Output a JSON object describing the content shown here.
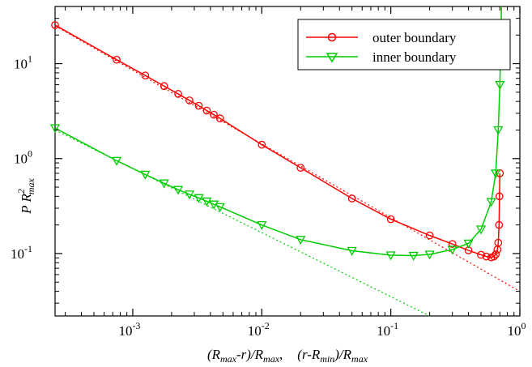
{
  "chart_data": {
    "type": "line",
    "title": "",
    "xscale": "log",
    "yscale": "log",
    "xlim": [
      0.00025,
      1.0
    ],
    "ylim": [
      0.022,
      40
    ],
    "grid": false,
    "legend": {
      "position": "top-right"
    },
    "xlabel": {
      "part1": "(R",
      "part1_sub": "max",
      "part2": "-r)/R",
      "part2_sub": "max",
      "sep": ",",
      "part3": "(r-R",
      "part3_sub": "min",
      "part4": ")/R",
      "part4_sub": "max"
    },
    "ylabel": {
      "main": "P R",
      "sup": "2",
      "sub": "max"
    },
    "x_ticks": [
      {
        "base": "10",
        "exp": "-3",
        "value": 0.001
      },
      {
        "base": "10",
        "exp": "-2",
        "value": 0.01
      },
      {
        "base": "10",
        "exp": "-1",
        "value": 0.1
      },
      {
        "base": "10",
        "exp": "0",
        "value": 1.0
      }
    ],
    "y_ticks": [
      {
        "base": "10",
        "exp": "-1",
        "value": 0.1
      },
      {
        "base": "10",
        "exp": "0",
        "value": 1.0
      },
      {
        "base": "10",
        "exp": "1",
        "value": 10.0
      }
    ],
    "series": [
      {
        "name": "outer boundary",
        "color": "#ff0000",
        "marker": "circle",
        "x": [
          0.00025,
          0.00075,
          0.00125,
          0.00175,
          0.00225,
          0.00275,
          0.00325,
          0.00375,
          0.00425,
          0.00475,
          0.01,
          0.02,
          0.05,
          0.1,
          0.2,
          0.3,
          0.4,
          0.5,
          0.55,
          0.6,
          0.63,
          0.65,
          0.67,
          0.68,
          0.69,
          0.695,
          0.7
        ],
        "y": [
          25.5,
          11.0,
          7.5,
          5.8,
          4.8,
          4.1,
          3.6,
          3.2,
          2.9,
          2.65,
          1.4,
          0.8,
          0.38,
          0.23,
          0.155,
          0.126,
          0.108,
          0.097,
          0.093,
          0.091,
          0.093,
          0.098,
          0.11,
          0.13,
          0.2,
          0.4,
          0.7
        ]
      },
      {
        "name": "inner boundary",
        "color": "#00cc00",
        "marker": "triangle-down",
        "x": [
          0.00025,
          0.00075,
          0.00125,
          0.00175,
          0.00225,
          0.00275,
          0.00325,
          0.00375,
          0.00425,
          0.00475,
          0.01,
          0.02,
          0.05,
          0.1,
          0.15,
          0.2,
          0.3,
          0.4,
          0.5,
          0.6,
          0.65,
          0.68,
          0.7,
          0.71,
          0.72
        ],
        "y": [
          2.1,
          0.95,
          0.68,
          0.55,
          0.47,
          0.42,
          0.385,
          0.355,
          0.33,
          0.31,
          0.2,
          0.14,
          0.107,
          0.096,
          0.095,
          0.098,
          0.11,
          0.128,
          0.18,
          0.35,
          0.7,
          2.0,
          6.0,
          15.0,
          40.0
        ]
      }
    ],
    "reference_lines": [
      {
        "color": "#ff0000",
        "style": "dotted",
        "x": [
          0.00025,
          1.0
        ],
        "y": [
          25.0,
          0.04
        ]
      },
      {
        "color": "#00cc00",
        "style": "dotted",
        "x": [
          0.00025,
          0.2
        ],
        "y": [
          2.0,
          0.022
        ]
      }
    ]
  }
}
